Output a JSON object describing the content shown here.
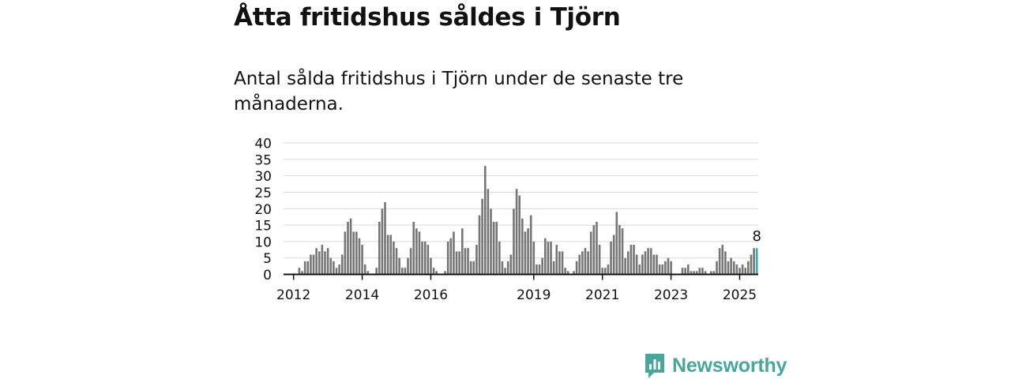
{
  "header": {
    "title": "Åtta fritidshus såldes i Tjörn",
    "subtitle": "Antal sålda fritidshus i Tjörn under de senaste tre månaderna."
  },
  "brand": {
    "name": "Newsworthy",
    "color": "#48a69b"
  },
  "chart_data": {
    "type": "bar",
    "ylim": [
      0,
      40
    ],
    "yticks": [
      0,
      5,
      10,
      15,
      20,
      25,
      30,
      35,
      40
    ],
    "xtick_labels": [
      "2012",
      "2014",
      "2016",
      "2019",
      "2021",
      "2023",
      "2025"
    ],
    "xtick_years": [
      2012,
      2014,
      2016,
      2019,
      2021,
      2023,
      2025
    ],
    "start": "2011-10",
    "grid": true,
    "bar_color": "#767676",
    "highlight_color": "#2ab3ad",
    "highlight_label": "8",
    "values": [
      0,
      0,
      0,
      0,
      0,
      2,
      1,
      4,
      4,
      6,
      6,
      8,
      7,
      9,
      7,
      8,
      5,
      4,
      2,
      3,
      6,
      13,
      16,
      17,
      13,
      13,
      11,
      9,
      3,
      1,
      0,
      0,
      2,
      16,
      20,
      22,
      12,
      12,
      10,
      8,
      5,
      2,
      2,
      5,
      8,
      16,
      14,
      13,
      10,
      10,
      9,
      5,
      2,
      1,
      0,
      0,
      1,
      10,
      11,
      13,
      7,
      7,
      14,
      8,
      8,
      4,
      4,
      9,
      18,
      23,
      33,
      26,
      20,
      16,
      16,
      10,
      4,
      2,
      4,
      6,
      20,
      26,
      24,
      17,
      13,
      14,
      18,
      10,
      3,
      3,
      5,
      11,
      10,
      10,
      4,
      9,
      7,
      7,
      2,
      1,
      0,
      1,
      4,
      6,
      7,
      8,
      7,
      13,
      15,
      16,
      9,
      2,
      2,
      3,
      10,
      12,
      19,
      15,
      14,
      5,
      7,
      9,
      9,
      6,
      3,
      6,
      7,
      8,
      8,
      6,
      6,
      3,
      3,
      4,
      5,
      4,
      0,
      0,
      0,
      2,
      2,
      3,
      1,
      1,
      1,
      2,
      2,
      1,
      0,
      1,
      1,
      4,
      8,
      9,
      7,
      4,
      5,
      4,
      3,
      2,
      3,
      2,
      4,
      6,
      8,
      8
    ]
  }
}
